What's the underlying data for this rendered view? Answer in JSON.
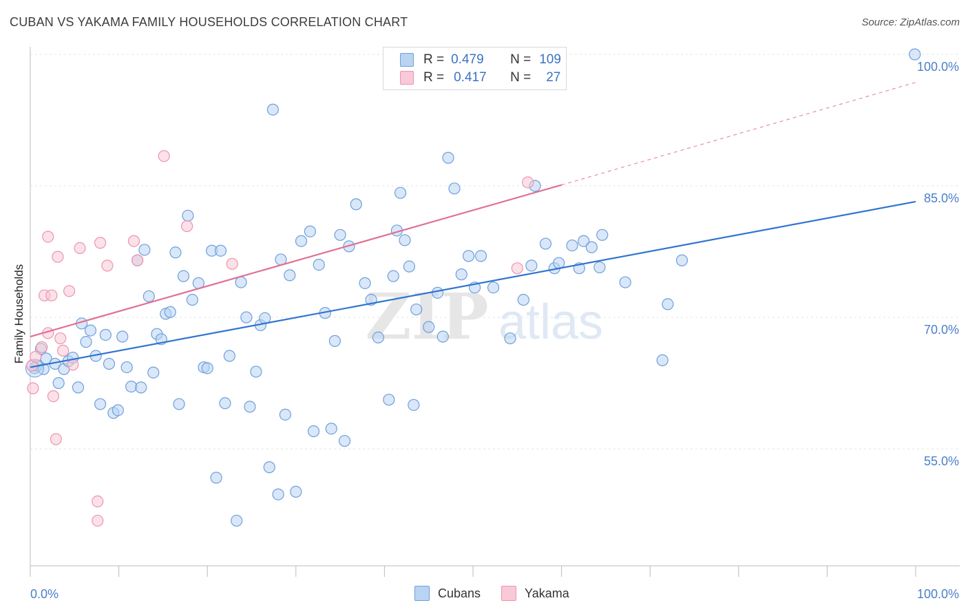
{
  "title": "CUBAN VS YAKAMA FAMILY HOUSEHOLDS CORRELATION CHART",
  "source": "Source: ZipAtlas.com",
  "watermark": {
    "zip": "ZIP",
    "atlas": "atlas"
  },
  "colors": {
    "cubans_fill": "#b9d3f2",
    "cubans_stroke": "#6c9fdb",
    "cubans_line": "#2f74d0",
    "yakama_fill": "#f8c9d6",
    "yakama_stroke": "#ee93ae",
    "yakama_line": "#e06f94",
    "tick_label": "#4a7fcb",
    "grid": "#e3e3e3"
  },
  "legend": {
    "rows": [
      {
        "r_label": "R =",
        "r_value": "0.479",
        "n_label": "N =",
        "n_value": "109"
      },
      {
        "r_label": "R =",
        "r_value": "0.417",
        "n_label": "N =",
        "n_value": "27"
      }
    ]
  },
  "chart_data": {
    "type": "scatter",
    "title": "CUBAN VS YAKAMA FAMILY HOUSEHOLDS CORRELATION CHART",
    "xlabel": "",
    "ylabel": "Family Households",
    "xlim": [
      0,
      100
    ],
    "ylim": [
      40,
      102
    ],
    "x_tick_labels": [
      "0.0%",
      "100.0%"
    ],
    "y_ticks": [
      55,
      70,
      85,
      100
    ],
    "y_tick_labels": [
      "55.0%",
      "70.0%",
      "85.0%",
      "100.0%"
    ],
    "grid": true,
    "legend_position": "bottom-center",
    "series": [
      {
        "name": "Cubans",
        "r": 0.479,
        "n": 109,
        "trend": {
          "x0": 0,
          "y0": 64.3,
          "x1": 100,
          "y1": 83.2
        },
        "points": [
          [
            0.5,
            64.2
          ],
          [
            0.8,
            64.5
          ],
          [
            1.2,
            66.4
          ],
          [
            1.5,
            64.1
          ],
          [
            1.8,
            65.3
          ],
          [
            2.8,
            64.7
          ],
          [
            3.2,
            62.5
          ],
          [
            3.8,
            64.1
          ],
          [
            4.3,
            65.0
          ],
          [
            4.8,
            65.4
          ],
          [
            5.4,
            62.0
          ],
          [
            5.8,
            69.3
          ],
          [
            6.3,
            67.2
          ],
          [
            6.8,
            68.5
          ],
          [
            7.4,
            65.6
          ],
          [
            7.9,
            60.1
          ],
          [
            8.5,
            68.0
          ],
          [
            8.9,
            64.7
          ],
          [
            9.4,
            59.1
          ],
          [
            9.9,
            59.4
          ],
          [
            10.4,
            67.8
          ],
          [
            10.9,
            64.3
          ],
          [
            11.4,
            62.1
          ],
          [
            12.1,
            76.5
          ],
          [
            12.5,
            62.0
          ],
          [
            12.9,
            77.7
          ],
          [
            13.4,
            72.4
          ],
          [
            13.9,
            63.7
          ],
          [
            14.3,
            68.1
          ],
          [
            14.8,
            67.5
          ],
          [
            15.3,
            70.4
          ],
          [
            15.8,
            70.6
          ],
          [
            16.4,
            77.4
          ],
          [
            16.8,
            60.1
          ],
          [
            17.3,
            74.7
          ],
          [
            17.8,
            81.6
          ],
          [
            18.3,
            72.0
          ],
          [
            19.0,
            73.9
          ],
          [
            19.6,
            64.3
          ],
          [
            20.0,
            64.2
          ],
          [
            20.5,
            77.6
          ],
          [
            21.0,
            51.7
          ],
          [
            21.5,
            77.6
          ],
          [
            22.0,
            60.2
          ],
          [
            22.5,
            65.6
          ],
          [
            23.3,
            46.8
          ],
          [
            23.8,
            74.0
          ],
          [
            24.4,
            70.0
          ],
          [
            24.8,
            59.8
          ],
          [
            25.5,
            63.8
          ],
          [
            26.0,
            69.1
          ],
          [
            26.5,
            69.9
          ],
          [
            27.0,
            52.9
          ],
          [
            27.4,
            93.7
          ],
          [
            28.0,
            49.8
          ],
          [
            28.3,
            76.6
          ],
          [
            28.8,
            58.9
          ],
          [
            29.3,
            74.8
          ],
          [
            30.0,
            50.1
          ],
          [
            30.6,
            78.7
          ],
          [
            31.6,
            79.8
          ],
          [
            32.0,
            57.0
          ],
          [
            32.6,
            76.0
          ],
          [
            33.3,
            70.5
          ],
          [
            34.0,
            57.3
          ],
          [
            34.4,
            67.3
          ],
          [
            35.0,
            79.4
          ],
          [
            35.5,
            55.9
          ],
          [
            36.0,
            78.1
          ],
          [
            36.8,
            82.9
          ],
          [
            37.8,
            73.9
          ],
          [
            38.5,
            72.0
          ],
          [
            39.3,
            67.7
          ],
          [
            40.5,
            60.6
          ],
          [
            41.0,
            74.7
          ],
          [
            41.4,
            79.9
          ],
          [
            41.8,
            84.2
          ],
          [
            42.3,
            78.8
          ],
          [
            42.8,
            75.8
          ],
          [
            43.3,
            60.0
          ],
          [
            43.6,
            70.9
          ],
          [
            45.0,
            68.9
          ],
          [
            46.0,
            72.8
          ],
          [
            46.6,
            67.8
          ],
          [
            47.2,
            88.2
          ],
          [
            47.9,
            84.7
          ],
          [
            48.7,
            74.9
          ],
          [
            49.5,
            77.0
          ],
          [
            50.2,
            73.4
          ],
          [
            50.9,
            77.0
          ],
          [
            52.3,
            73.4
          ],
          [
            54.2,
            67.6
          ],
          [
            55.7,
            72.0
          ],
          [
            56.6,
            75.9
          ],
          [
            57.0,
            85.0
          ],
          [
            58.2,
            78.4
          ],
          [
            59.2,
            75.6
          ],
          [
            59.7,
            76.2
          ],
          [
            61.2,
            78.2
          ],
          [
            62.0,
            75.6
          ],
          [
            62.5,
            78.7
          ],
          [
            63.4,
            78.0
          ],
          [
            64.3,
            75.7
          ],
          [
            64.6,
            79.4
          ],
          [
            67.2,
            74.0
          ],
          [
            71.4,
            65.1
          ],
          [
            72.0,
            71.5
          ],
          [
            73.6,
            76.5
          ],
          [
            99.9,
            100.0
          ]
        ]
      },
      {
        "name": "Yakama",
        "r": 0.417,
        "n": 27,
        "trend": {
          "x0": 0,
          "y0": 67.8,
          "x1": 60,
          "y1": 85.1,
          "dash_to_x": 100,
          "dash_to_y": 96.8
        },
        "points": [
          [
            0.2,
            64.5
          ],
          [
            0.3,
            61.9
          ],
          [
            0.6,
            65.5
          ],
          [
            1.3,
            66.6
          ],
          [
            1.6,
            72.5
          ],
          [
            2.0,
            68.2
          ],
          [
            2.0,
            79.2
          ],
          [
            2.4,
            72.5
          ],
          [
            2.6,
            61.0
          ],
          [
            2.9,
            56.1
          ],
          [
            3.1,
            76.9
          ],
          [
            3.4,
            67.6
          ],
          [
            3.7,
            66.2
          ],
          [
            4.4,
            73.0
          ],
          [
            4.8,
            64.6
          ],
          [
            5.6,
            77.9
          ],
          [
            7.6,
            49.0
          ],
          [
            7.6,
            46.8
          ],
          [
            7.9,
            78.5
          ],
          [
            8.7,
            75.9
          ],
          [
            11.7,
            78.7
          ],
          [
            12.1,
            76.5
          ],
          [
            15.1,
            88.4
          ],
          [
            17.7,
            80.4
          ],
          [
            22.8,
            76.1
          ],
          [
            55.0,
            75.6
          ],
          [
            56.2,
            85.4
          ]
        ]
      }
    ]
  },
  "x_axis": {
    "left_label": "0.0%",
    "right_label": "100.0%"
  },
  "bottom_legend": {
    "cubans": "Cubans",
    "yakama": "Yakama"
  }
}
